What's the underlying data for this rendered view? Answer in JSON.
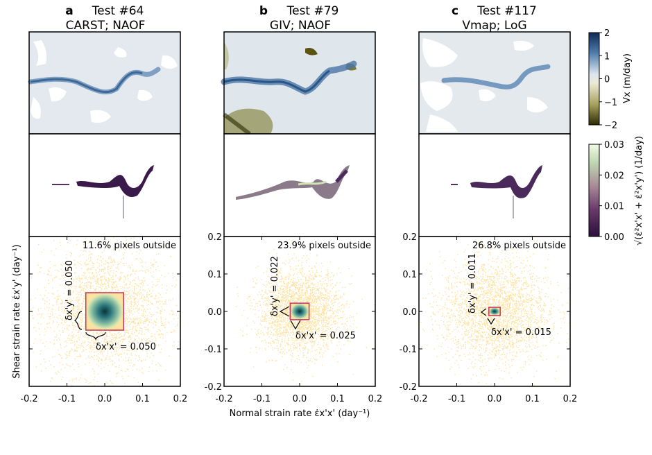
{
  "panels": [
    {
      "letter": "a",
      "test": "Test #64",
      "method": "CARST; NAOF",
      "outside": "11.6% pixels outside",
      "yann": "δx'y' = 0.050",
      "xann": "δx'x' = 0.050"
    },
    {
      "letter": "b",
      "test": "Test #79",
      "method": "GIV; NAOF",
      "outside": "23.9% pixels outside",
      "yann": "δx'y' = 0.022",
      "xann": "δx'x' = 0.025"
    },
    {
      "letter": "c",
      "test": "Test #117",
      "method": "Vmap; LoG",
      "outside": "26.8% pixels outside",
      "yann": "δx'y' = 0.011",
      "xann": "δx'x' = 0.015"
    }
  ],
  "axes": {
    "xlabel": "Normal strain rate ε̇x'x' (day⁻¹)",
    "ylabel": "Shear strain rate ε̇x'y' (day⁻¹)",
    "xticks": [
      "-0.2",
      "-0.1",
      "0.0",
      "0.1",
      "0.2"
    ],
    "yticks": [
      "0.2",
      "0.1",
      "0.0",
      "-0.1",
      "-0.2"
    ]
  },
  "colorbars": {
    "velocity": {
      "label": "Vx (m/day)",
      "ticks": [
        "2",
        "1",
        "0",
        "−1",
        "−2"
      ]
    },
    "strain": {
      "label": "√(ε̇²x'x' + ε̇²x'y') (1/day)",
      "ticks": [
        "0.03",
        "0.02",
        "0.01",
        "0.00"
      ]
    }
  },
  "colors": {
    "scatter": "#fde2a0",
    "box": "#c8365a",
    "velocity_neg": "#2b2a05",
    "velocity_pos": "#0f2a55"
  },
  "chart_data": [
    {
      "type": "scatter",
      "title": "Test #64",
      "subtitle": "CARST; NAOF",
      "xlabel": "Normal strain rate ε̇x'x' (day⁻¹)",
      "ylabel": "Shear strain rate ε̇x'y' (day⁻¹)",
      "xlim": [
        -0.2,
        0.2
      ],
      "ylim": [
        -0.2,
        0.2
      ],
      "pixels_outside_percent": 11.6,
      "delta_xx": 0.05,
      "delta_xy": 0.05,
      "spread": 0.085
    },
    {
      "type": "scatter",
      "title": "Test #79",
      "subtitle": "GIV; NAOF",
      "xlabel": "Normal strain rate ε̇x'x' (day⁻¹)",
      "ylabel": "Shear strain rate ε̇x'y' (day⁻¹)",
      "xlim": [
        -0.2,
        0.2
      ],
      "ylim": [
        -0.2,
        0.2
      ],
      "pixels_outside_percent": 23.9,
      "delta_xx": 0.025,
      "delta_xy": 0.022,
      "spread": 0.055
    },
    {
      "type": "scatter",
      "title": "Test #117",
      "subtitle": "Vmap; LoG",
      "xlabel": "Normal strain rate ε̇x'x' (day⁻¹)",
      "ylabel": "Shear strain rate ε̇x'y' (day⁻¹)",
      "xlim": [
        -0.2,
        0.2
      ],
      "ylim": [
        -0.2,
        0.2
      ],
      "pixels_outside_percent": 26.8,
      "delta_xx": 0.015,
      "delta_xy": 0.011,
      "spread": 0.07
    }
  ]
}
